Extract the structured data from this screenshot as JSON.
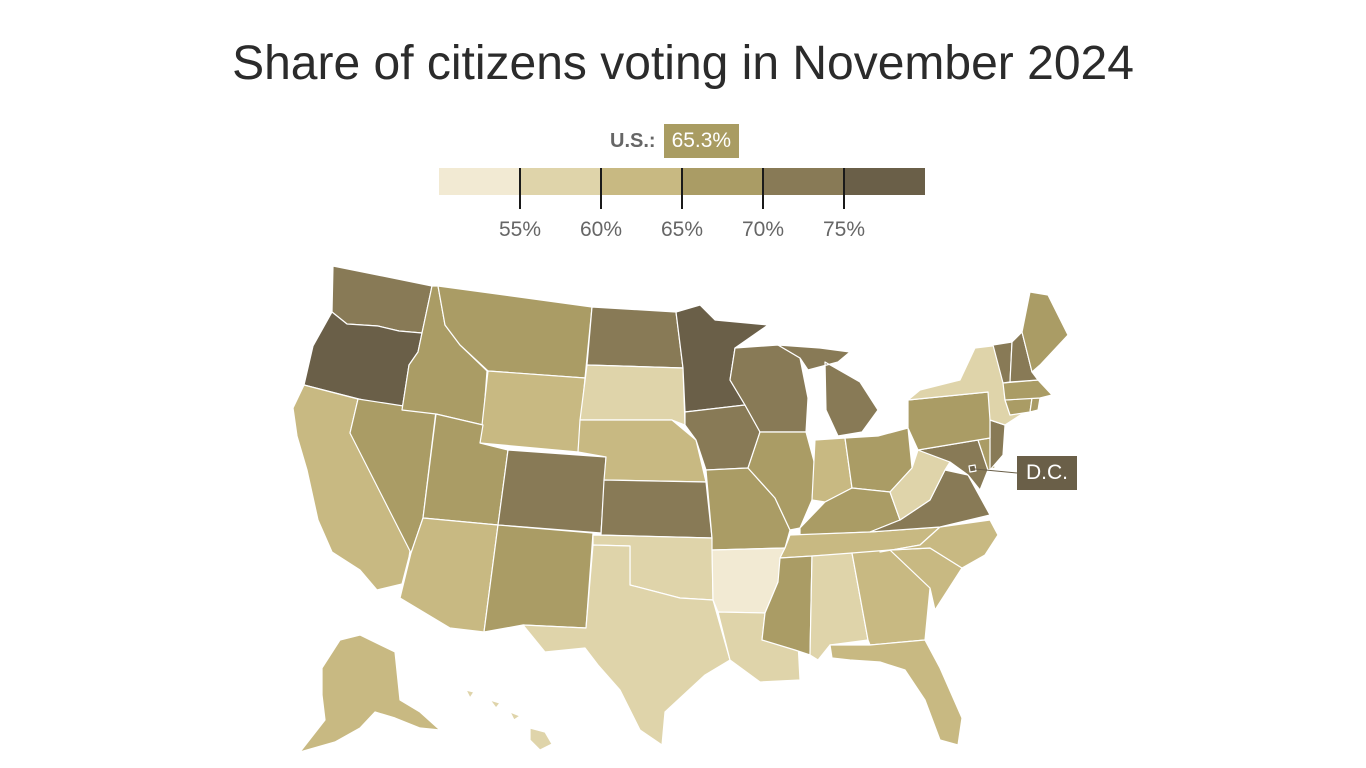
{
  "title": "Share of citizens voting in November 2024",
  "us_average": {
    "label": "U.S.:",
    "value": "65.3%"
  },
  "legend": {
    "bins": [
      {
        "color": "#f2ead3",
        "range": "below 55%"
      },
      {
        "color": "#dfd4aa",
        "range": "55–60%"
      },
      {
        "color": "#c8b982",
        "range": "60–65%"
      },
      {
        "color": "#aa9c65",
        "range": "65–70%"
      },
      {
        "color": "#887a56",
        "range": "70–75%"
      },
      {
        "color": "#6a5f48",
        "range": "75% and above"
      }
    ],
    "ticks": [
      "55%",
      "60%",
      "65%",
      "70%",
      "75%"
    ]
  },
  "dc_label": "D.C.",
  "state_bins": {
    "WA": 4,
    "OR": 5,
    "CA": 2,
    "NV": 3,
    "ID": 3,
    "MT": 3,
    "WY": 2,
    "UT": 3,
    "AZ": 2,
    "CO": 4,
    "NM": 3,
    "ND": 4,
    "SD": 1,
    "NE": 2,
    "KS": 4,
    "OK": 1,
    "TX": 1,
    "MN": 5,
    "IA": 4,
    "MO": 3,
    "AR": 0,
    "LA": 1,
    "WI": 4,
    "IL": 3,
    "MI": 4,
    "IN": 2,
    "OH": 3,
    "KY": 3,
    "TN": 2,
    "MS": 3,
    "AL": 1,
    "GA": 2,
    "FL": 2,
    "SC": 2,
    "NC": 2,
    "VA": 4,
    "WV": 1,
    "MD": 4,
    "DE": 3,
    "NJ": 4,
    "PA": 3,
    "NY": 1,
    "CT": 3,
    "RI": 3,
    "MA": 3,
    "VT": 4,
    "NH": 4,
    "ME": 3,
    "AK": 2,
    "HI": 1,
    "DC": 5
  }
}
